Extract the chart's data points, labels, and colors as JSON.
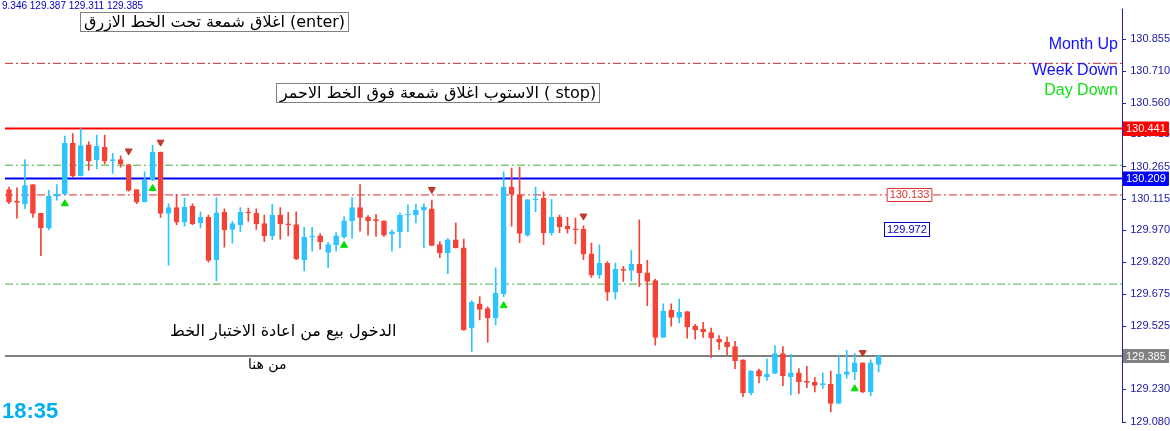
{
  "chart_data": {
    "type": "candlestick",
    "categories": [
      null,
      null,
      null,
      null,
      null,
      null,
      null,
      null,
      null,
      null,
      null,
      null,
      null,
      null,
      null,
      null,
      null,
      null,
      null,
      null,
      null,
      null,
      null,
      null,
      null,
      null,
      null,
      null,
      null,
      null,
      null,
      null,
      null,
      null,
      null,
      null,
      null,
      null,
      null,
      null,
      null,
      null,
      null,
      null,
      null,
      null,
      null,
      null,
      null,
      null,
      null,
      null,
      null,
      null,
      null,
      null,
      null,
      null,
      null,
      null,
      null,
      null,
      null,
      null,
      null,
      null,
      null,
      null,
      null,
      null,
      null,
      null,
      null,
      null,
      null,
      null,
      null,
      null,
      null,
      null,
      null,
      null,
      null,
      null,
      null,
      null,
      null,
      null,
      null,
      null,
      null,
      null,
      null,
      null,
      null,
      null,
      null,
      null,
      null,
      null,
      null,
      null,
      null,
      null,
      null,
      null,
      null,
      null,
      null,
      null,
      null,
      null,
      null,
      null,
      null,
      null,
      null,
      null,
      null,
      null,
      null,
      null,
      null,
      null,
      null,
      null,
      null,
      null,
      null,
      null,
      null,
      null,
      null,
      null,
      null,
      null,
      null,
      null,
      null,
      null
    ],
    "ohlc": [
      [
        130.158,
        130.169,
        130.092,
        130.099
      ],
      [
        130.104,
        130.166,
        130.025,
        130.098
      ],
      [
        130.092,
        130.297,
        130.069,
        130.176
      ],
      [
        130.181,
        130.181,
        130.029,
        130.047
      ],
      [
        130.047,
        130.047,
        129.851,
        129.98
      ],
      [
        129.98,
        130.154,
        129.97,
        130.126
      ],
      [
        130.127,
        130.181,
        130.109,
        130.136
      ],
      [
        130.136,
        130.406,
        130.133,
        130.372
      ],
      [
        130.372,
        130.418,
        130.213,
        130.221
      ],
      [
        130.221,
        130.441,
        130.221,
        130.362
      ],
      [
        130.365,
        130.38,
        130.248,
        130.291
      ],
      [
        130.297,
        130.411,
        130.255,
        130.359
      ],
      [
        130.354,
        130.411,
        130.277,
        130.291
      ],
      [
        130.292,
        130.326,
        130.233,
        130.295
      ],
      [
        130.297,
        130.314,
        130.262,
        130.277
      ],
      [
        130.274,
        130.274,
        130.151,
        130.154
      ],
      [
        130.158,
        130.158,
        130.092,
        130.099
      ],
      [
        130.101,
        130.24,
        130.101,
        130.203
      ],
      [
        130.203,
        130.363,
        130.199,
        130.332
      ],
      [
        130.332,
        130.332,
        130.029,
        130.047
      ],
      [
        130.047,
        130.092,
        129.807,
        130.074
      ],
      [
        130.074,
        130.136,
        129.995,
        130.006
      ],
      [
        130.006,
        130.118,
        129.988,
        130.077
      ],
      [
        130.081,
        130.092,
        129.995,
        129.998
      ],
      [
        130.003,
        130.055,
        129.98,
        130.029
      ],
      [
        130.029,
        130.04,
        129.821,
        129.829
      ],
      [
        129.832,
        130.121,
        129.735,
        130.05
      ],
      [
        130.052,
        130.069,
        129.891,
        129.97
      ],
      [
        129.973,
        130.01,
        129.909,
        130.0
      ],
      [
        129.994,
        130.074,
        129.962,
        130.052
      ],
      [
        130.052,
        130.072,
        130.01,
        130.049
      ],
      [
        130.047,
        130.069,
        129.973,
        129.998
      ],
      [
        130.0,
        130.04,
        129.916,
        129.943
      ],
      [
        129.943,
        130.089,
        129.925,
        130.04
      ],
      [
        130.04,
        130.074,
        129.928,
        129.998
      ],
      [
        129.998,
        130.052,
        129.943,
        129.994
      ],
      [
        129.995,
        130.055,
        129.832,
        129.836
      ],
      [
        129.833,
        129.983,
        129.78,
        129.936
      ],
      [
        129.937,
        129.983,
        129.872,
        129.94
      ],
      [
        129.943,
        129.954,
        129.881,
        129.916
      ],
      [
        129.866,
        129.913,
        129.795,
        129.902
      ],
      [
        129.902,
        129.958,
        129.872,
        129.943
      ],
      [
        129.939,
        130.032,
        129.931,
        130.013
      ],
      [
        130.013,
        130.121,
        129.931,
        130.074
      ],
      [
        130.074,
        130.181,
        129.965,
        130.029
      ],
      [
        130.029,
        130.037,
        129.946,
        130.014
      ],
      [
        130.017,
        130.043,
        129.94,
        130.014
      ],
      [
        130.013,
        130.013,
        129.94,
        129.946
      ],
      [
        129.951,
        129.97,
        129.872,
        129.962
      ],
      [
        129.962,
        130.05,
        129.887,
        130.04
      ],
      [
        130.04,
        130.087,
        129.961,
        130.043
      ],
      [
        130.04,
        130.089,
        130.003,
        130.062
      ],
      [
        130.062,
        130.092,
        129.887,
        130.075
      ],
      [
        130.069,
        130.109,
        129.896,
        129.899
      ],
      [
        129.902,
        129.916,
        129.842,
        129.864
      ],
      [
        129.864,
        129.931,
        129.768,
        129.924
      ],
      [
        129.924,
        130.003,
        129.887,
        129.887
      ],
      [
        129.887,
        129.928,
        129.504,
        129.508
      ],
      [
        129.517,
        129.643,
        129.406,
        129.634
      ],
      [
        129.628,
        129.661,
        129.553,
        129.602
      ],
      [
        129.605,
        129.614,
        129.45,
        129.562
      ],
      [
        129.562,
        129.795,
        129.53,
        129.676
      ],
      [
        129.673,
        130.24,
        129.661,
        130.169
      ],
      [
        130.169,
        130.258,
        129.988,
        130.136
      ],
      [
        130.133,
        130.262,
        129.911,
        129.954
      ],
      [
        129.946,
        130.111,
        129.94,
        130.111
      ],
      [
        130.11,
        130.169,
        130.055,
        130.114
      ],
      [
        130.117,
        130.147,
        129.902,
        129.958
      ],
      [
        129.958,
        130.111,
        129.946,
        130.029
      ],
      [
        130.029,
        130.04,
        129.958,
        129.985
      ],
      [
        129.988,
        130.029,
        129.955,
        129.976
      ],
      [
        129.976,
        130.025,
        129.906,
        129.971
      ],
      [
        129.973,
        129.99,
        129.832,
        129.858
      ],
      [
        129.86,
        129.909,
        129.75,
        129.76
      ],
      [
        129.762,
        129.901,
        129.747,
        129.815
      ],
      [
        129.815,
        129.824,
        129.643,
        129.682
      ],
      [
        129.682,
        129.817,
        129.649,
        129.788
      ],
      [
        129.788,
        129.802,
        129.732,
        129.783
      ],
      [
        129.783,
        129.876,
        129.735,
        129.811
      ],
      [
        129.811,
        130.017,
        129.708,
        129.772
      ],
      [
        129.771,
        129.829,
        129.619,
        129.731
      ],
      [
        129.735,
        129.742,
        129.435,
        129.472
      ],
      [
        129.472,
        129.627,
        129.472,
        129.594
      ],
      [
        129.597,
        129.627,
        129.524,
        129.564
      ],
      [
        129.564,
        129.65,
        129.539,
        129.588
      ],
      [
        129.592,
        129.592,
        129.468,
        129.52
      ],
      [
        129.523,
        129.532,
        129.463,
        129.508
      ],
      [
        129.509,
        129.542,
        129.471,
        129.497
      ],
      [
        129.494,
        129.515,
        129.379,
        129.468
      ],
      [
        129.463,
        129.48,
        129.416,
        129.45
      ],
      [
        129.45,
        129.474,
        129.391,
        129.429
      ],
      [
        129.429,
        129.453,
        129.327,
        129.364
      ],
      [
        129.367,
        129.367,
        129.197,
        129.215
      ],
      [
        129.215,
        129.316,
        129.205,
        129.316
      ],
      [
        129.318,
        129.325,
        129.26,
        129.292
      ],
      [
        129.289,
        129.371,
        129.272,
        129.3
      ],
      [
        129.304,
        129.434,
        129.304,
        129.396
      ],
      [
        129.396,
        129.429,
        129.248,
        129.294
      ],
      [
        129.289,
        129.393,
        129.205,
        129.307
      ],
      [
        129.307,
        129.327,
        129.212,
        129.266
      ],
      [
        129.267,
        129.337,
        129.238,
        129.263
      ],
      [
        129.264,
        129.285,
        129.218,
        129.249
      ],
      [
        129.252,
        129.307,
        129.235,
        129.255
      ],
      [
        129.254,
        129.315,
        129.126,
        129.165
      ],
      [
        129.165,
        129.389,
        129.165,
        129.3
      ],
      [
        129.3,
        129.411,
        129.282,
        129.312
      ],
      [
        129.312,
        129.396,
        129.275,
        129.353
      ],
      [
        129.353,
        129.353,
        129.215,
        129.218
      ],
      [
        129.218,
        129.367,
        129.2,
        129.353
      ],
      [
        129.346,
        129.387,
        129.311,
        129.385
      ],
      null,
      null,
      null,
      null,
      null,
      null,
      null,
      null,
      null,
      null,
      null,
      null,
      null,
      null,
      null,
      null,
      null,
      null,
      null,
      null,
      null,
      null,
      null,
      null,
      null,
      null,
      null,
      null,
      null,
      null
    ],
    "colors": [
      "#f44336",
      "#f44336",
      "#2ec4ff",
      "#f44336",
      "#f44336",
      "#2ec4ff",
      "#2ec4ff",
      "#2ec4ff",
      "#f44336",
      "#2ec4ff",
      "#f44336",
      "#2ec4ff",
      "#f44336",
      "#2ec4ff",
      "#f44336",
      "#f44336",
      "#f44336",
      "#2ec4ff",
      "#2ec4ff",
      "#f44336",
      "#2ec4ff",
      "#f44336",
      "#2ec4ff",
      "#f44336",
      "#2ec4ff",
      "#f44336",
      "#2ec4ff",
      "#f44336",
      "#2ec4ff",
      "#2ec4ff",
      "#f44336",
      "#f44336",
      "#f44336",
      "#2ec4ff",
      "#f44336",
      "#f44336",
      "#f44336",
      "#2ec4ff",
      "#2ec4ff",
      "#f44336",
      "#2ec4ff",
      "#2ec4ff",
      "#2ec4ff",
      "#2ec4ff",
      "#f44336",
      "#f44336",
      "#f44336",
      "#f44336",
      "#2ec4ff",
      "#2ec4ff",
      "#2ec4ff",
      "#2ec4ff",
      "#2ec4ff",
      "#f44336",
      "#f44336",
      "#2ec4ff",
      "#f44336",
      "#f44336",
      "#2ec4ff",
      "#f44336",
      "#f44336",
      "#2ec4ff",
      "#2ec4ff",
      "#f44336",
      "#f44336",
      "#2ec4ff",
      "#2ec4ff",
      "#f44336",
      "#2ec4ff",
      "#f44336",
      "#f44336",
      "#f44336",
      "#f44336",
      "#f44336",
      "#2ec4ff",
      "#f44336",
      "#2ec4ff",
      "#f44336",
      "#2ec4ff",
      "#f44336",
      "#f44336",
      "#f44336",
      "#2ec4ff",
      "#f44336",
      "#2ec4ff",
      "#f44336",
      "#f44336",
      "#f44336",
      "#f44336",
      "#f44336",
      "#f44336",
      "#f44336",
      "#f44336",
      "#2ec4ff",
      "#f44336",
      "#2ec4ff",
      "#2ec4ff",
      "#f44336",
      "#2ec4ff",
      "#f44336",
      "#f44336",
      "#f44336",
      "#2ec4ff",
      "#f44336",
      "#2ec4ff",
      "#2ec4ff",
      "#2ec4ff",
      "#f44336",
      "#2ec4ff",
      "#2ec4ff",
      null,
      null,
      null,
      null,
      null,
      null,
      null,
      null,
      null,
      null,
      null,
      null,
      null,
      null,
      null,
      null,
      null,
      null,
      null,
      null,
      null,
      null,
      null,
      null,
      null,
      null,
      null,
      null,
      null,
      null
    ],
    "series": [
      {
        "type": "scatter",
        "color": "#00e000",
        "marker": "triangle",
        "values": [
          null,
          null,
          null,
          null,
          null,
          null,
          null,
          130.092,
          null,
          null,
          null,
          null,
          null,
          null,
          null,
          null,
          null,
          null,
          130.163,
          null,
          null,
          null,
          null,
          null,
          null,
          null,
          null,
          null,
          null,
          null,
          null,
          null,
          null,
          null,
          null,
          null,
          null,
          null,
          null,
          null,
          null,
          null,
          129.899,
          null,
          null,
          null,
          null,
          null,
          null,
          null,
          null,
          null,
          null,
          null,
          null,
          null,
          null,
          null,
          null,
          null,
          null,
          null,
          129.619,
          null,
          null,
          null,
          null,
          null,
          null,
          null,
          null,
          null,
          null,
          null,
          null,
          null,
          null,
          null,
          null,
          null,
          null,
          null,
          null,
          null,
          null,
          null,
          null,
          null,
          null,
          null,
          null,
          null,
          null,
          null,
          null,
          null,
          null,
          null,
          null,
          null,
          null,
          null,
          null,
          null,
          null,
          null,
          129.233,
          null,
          null,
          null,
          null,
          null,
          null,
          null,
          null,
          null,
          null,
          null,
          null,
          null,
          null,
          null,
          null,
          null,
          null,
          null,
          null,
          null,
          null,
          null,
          null,
          null,
          null,
          null,
          null,
          null,
          null,
          null,
          null,
          null
        ]
      },
      {
        "type": "scatter",
        "color": "#c0392b",
        "marker": "triangle",
        "values": [
          null,
          null,
          null,
          null,
          null,
          null,
          null,
          null,
          null,
          null,
          null,
          null,
          null,
          null,
          null,
          130.337,
          null,
          null,
          null,
          130.378,
          null,
          null,
          null,
          null,
          null,
          null,
          null,
          null,
          null,
          null,
          null,
          null,
          null,
          null,
          null,
          null,
          null,
          null,
          null,
          null,
          null,
          null,
          null,
          null,
          null,
          null,
          null,
          null,
          null,
          null,
          null,
          null,
          null,
          130.158,
          null,
          null,
          null,
          null,
          null,
          null,
          null,
          null,
          null,
          null,
          null,
          null,
          null,
          null,
          null,
          null,
          null,
          null,
          130.035,
          null,
          null,
          null,
          null,
          null,
          null,
          null,
          null,
          null,
          null,
          null,
          null,
          null,
          null,
          null,
          null,
          null,
          null,
          null,
          null,
          null,
          null,
          null,
          null,
          null,
          null,
          null,
          null,
          null,
          null,
          null,
          null,
          null,
          null,
          129.401,
          null,
          null,
          null,
          null,
          null,
          null,
          null,
          null,
          null,
          null,
          null,
          null,
          null,
          null,
          null,
          null,
          null,
          null,
          null,
          null,
          null,
          null,
          null,
          null,
          null,
          null,
          null,
          null,
          null,
          null,
          null,
          null
        ]
      }
    ],
    "ylim": [
      129.077,
      130.998
    ],
    "yticks": [
      {
        "value": 129.08,
        "label": "129.080"
      },
      {
        "value": 129.23,
        "label": "129.230"
      },
      129.525,
      129.675,
      {
        "value": 129.82,
        "label": "129.820"
      },
      {
        "value": 129.97,
        "label": "129.970"
      },
      130.115,
      130.265,
      130.415,
      {
        "value": 130.56,
        "label": "130.560"
      },
      {
        "value": 130.71,
        "label": "130.710"
      },
      130.855
    ],
    "tick_labels": "y",
    "ref_lines": [
      {
        "axis": "y",
        "value": 130.441,
        "label": "130.441",
        "color": "#ff0000",
        "line_style": "solid"
      },
      {
        "axis": "y",
        "value": 130.209,
        "label": "130.209",
        "color": "#0000ff",
        "line_style": "solid"
      },
      {
        "axis": "y",
        "value": 129.385,
        "label": "129.385",
        "color": "#808080",
        "line_style": "solid"
      },
      {
        "axis": "y",
        "value": 130.133,
        "label": "130.133",
        "color": "#e03030",
        "line_style": "dashed"
      },
      {
        "axis": "y",
        "value": 130.744,
        "color": "#c03030",
        "line_style": "dashed"
      },
      {
        "axis": "y",
        "value": 130.271,
        "color": "#40b040",
        "line_style": "dashed"
      },
      {
        "axis": "y",
        "value": 129.719,
        "color": "#40b040",
        "line_style": "dashed"
      }
    ],
    "annotations": [
      "9.346 129.387 129.311 129.385",
      "اغلاق شمعة تحت الخط الازرق (enter)",
      "الاستوب اغلاق شمعة فوق الخط الاحمر ( stop)",
      "الدخول بيع من اعادة الاختبار الخط",
      "من هنا",
      "Month Up",
      "Week Down",
      "Day Down",
      "18:35",
      "129.972"
    ]
  }
}
